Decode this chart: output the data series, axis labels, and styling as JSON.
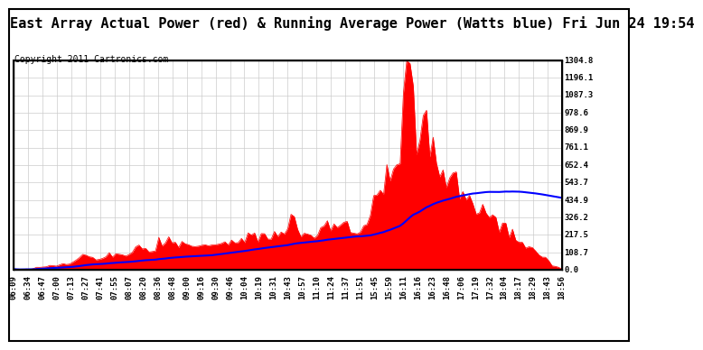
{
  "title": "East Array Actual Power (red) & Running Average Power (Watts blue) Fri Jun 24 19:54",
  "copyright": "Copyright 2011 Cartronics.com",
  "bg_color": "#ffffff",
  "plot_bg_color": "#ffffff",
  "grid_color": "#cccccc",
  "actual_color": "#ff0000",
  "avg_color": "#0000ff",
  "ymax": 1304.8,
  "ymin": 0.0,
  "yticks": [
    0.0,
    108.7,
    217.5,
    326.2,
    434.9,
    543.7,
    652.4,
    761.1,
    869.9,
    978.6,
    1087.3,
    1196.1,
    1304.8
  ],
  "xtick_labels": [
    "06:09",
    "06:34",
    "06:47",
    "07:00",
    "07:13",
    "07:27",
    "07:41",
    "07:55",
    "08:07",
    "08:20",
    "08:36",
    "08:48",
    "09:00",
    "09:16",
    "09:30",
    "09:46",
    "10:04",
    "10:19",
    "10:31",
    "10:43",
    "10:57",
    "11:10",
    "11:24",
    "11:37",
    "11:51",
    "15:45",
    "15:59",
    "16:11",
    "16:16",
    "16:23",
    "16:48",
    "17:06",
    "17:19",
    "17:32",
    "18:04",
    "18:17",
    "18:29",
    "18:43",
    "18:56"
  ],
  "title_fontsize": 11,
  "copyright_fontsize": 7,
  "tick_fontsize": 6.5
}
